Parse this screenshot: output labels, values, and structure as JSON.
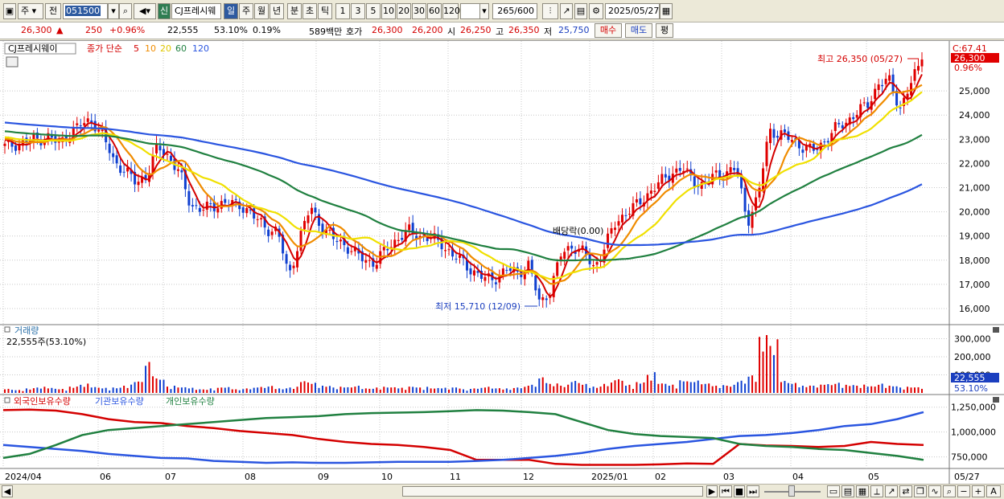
{
  "toolbar": {
    "period_label": "주",
    "prev_label": "전",
    "stock_code": "051500",
    "new_label": "신",
    "stock_name": "CJ프레시웨",
    "tabs": [
      "일",
      "주",
      "월",
      "년",
      "분",
      "초",
      "틱"
    ],
    "active_tab": "일",
    "intervals": [
      "1",
      "3",
      "5",
      "10",
      "20",
      "30",
      "60",
      "120"
    ],
    "count": "265",
    "count_total": "/600",
    "date": "2025/05/27"
  },
  "info": {
    "price": "26,300",
    "change": "250",
    "change_pct": "+0.96%",
    "volume": "22,555",
    "vol_ratio": "53.10%",
    "turnover": "0.19%",
    "amount": "589백만",
    "bid_label": "호가",
    "ask_price": "26,300",
    "bid_price": "26,200",
    "open_label": "시",
    "open": "26,250",
    "high_label": "고",
    "high": "26,350",
    "low_label": "저",
    "low": "25,750",
    "buy_label": "매수",
    "sell_label": "매도",
    "eval_label": "평"
  },
  "price_panel": {
    "legend_name": "CJ프레시웨이",
    "legend_ma_title": "종가 단순",
    "ma_periods": [
      "5",
      "10",
      "20",
      "60",
      "120"
    ],
    "ma_colors": [
      "#d40000",
      "#f08c00",
      "#f0e000",
      "#208040",
      "#2a55e0"
    ],
    "max_label": "최고 26,350 (05/27)",
    "min_label": "최저 15,710 (12/09)",
    "ex_div_label": "배당락(0.00)",
    "current_price_tag": "26,300",
    "change_tag": "0.96%",
    "c_label": "C:67.41",
    "y_ticks": [
      "25,000",
      "24,000",
      "23,000",
      "22,000",
      "21,000",
      "20,000",
      "19,000",
      "18,000",
      "17,000",
      "16,000"
    ]
  },
  "volume_panel": {
    "title": "거래량",
    "value_label": "22,555주(53.10%)",
    "y_ticks": [
      "300,000",
      "200,000",
      "100,000"
    ],
    "current_tag": "22,555",
    "pct_tag": "53.10%"
  },
  "holding_panel": {
    "legend": [
      "외국인보유수량",
      "기관보유수량",
      "개인보유수량"
    ],
    "colors": [
      "#d40000",
      "#2a55e0",
      "#208040"
    ],
    "y_ticks": [
      "1,250,000",
      "1,000,000",
      "750,000"
    ]
  },
  "x_axis": {
    "ticks": [
      "2024/04",
      "06",
      "07",
      "08",
      "09",
      "10",
      "11",
      "12",
      "2025/01",
      "02",
      "03",
      "04",
      "05"
    ],
    "right_label": "05/27"
  },
  "chart_data": {
    "type": "candlestick",
    "title": "CJ프레시웨이",
    "x_range": [
      "2024/04",
      "05/27"
    ],
    "ylim_price": [
      15500,
      26800
    ],
    "ylim_volume": [
      0,
      320000
    ],
    "ylim_holding": [
      650000,
      1280000
    ],
    "close_series": [
      22700,
      22800,
      22900,
      23000,
      23100,
      22800,
      23300,
      23600,
      23800,
      23100,
      22100,
      21700,
      21200,
      21500,
      22700,
      22300,
      21600,
      20300,
      20100,
      20200,
      20400,
      20300,
      20200,
      19700,
      19300,
      19200,
      17300,
      18900,
      20200,
      19400,
      18900,
      18700,
      18300,
      18000,
      17900,
      18500,
      18900,
      19200,
      19000,
      18900,
      18700,
      18200,
      17900,
      17500,
      17200,
      17300,
      17600,
      17500,
      17800,
      16200,
      16800,
      18300,
      18600,
      18300,
      17700,
      18600,
      19600,
      20000,
      20300,
      20800,
      21200,
      21600,
      21800,
      21300,
      21100,
      21500,
      21600,
      21800,
      19600,
      20600,
      23400,
      23200,
      23000,
      22700,
      22500,
      22900,
      23400,
      23700,
      24100,
      24400,
      25300,
      25400,
      24300,
      25300,
      26300
    ],
    "volume_series": [
      20000,
      15000,
      25000,
      30000,
      25000,
      20000,
      35000,
      45000,
      30000,
      25000,
      30000,
      40000,
      60000,
      150000,
      80000,
      35000,
      30000,
      25000,
      20000,
      25000,
      30000,
      20000,
      25000,
      30000,
      35000,
      25000,
      30000,
      60000,
      50000,
      40000,
      30000,
      30000,
      35000,
      25000,
      30000,
      30000,
      25000,
      35000,
      30000,
      25000,
      25000,
      30000,
      20000,
      25000,
      30000,
      25000,
      25000,
      30000,
      40000,
      80000,
      50000,
      40000,
      60000,
      45000,
      35000,
      50000,
      70000,
      40000,
      60000,
      100000,
      50000,
      40000,
      70000,
      60000,
      50000,
      40000,
      40000,
      60000,
      90000,
      310000,
      260000,
      60000,
      50000,
      40000,
      40000,
      45000,
      50000,
      45000,
      40000,
      35000,
      45000,
      40000,
      30000,
      30000,
      22555
    ],
    "holding_series": [
      {
        "name": "외국인보유수량",
        "values": [
          1220000,
          1225000,
          1215000,
          1180000,
          1130000,
          1100000,
          1090000,
          1060000,
          1040000,
          1010000,
          990000,
          970000,
          930000,
          900000,
          880000,
          870000,
          850000,
          820000,
          720000,
          720000,
          720000,
          680000,
          670000,
          670000,
          670000,
          675000,
          685000,
          680000,
          880000,
          865000,
          860000,
          850000,
          860000,
          900000,
          880000,
          870000
        ]
      },
      {
        "name": "기관보유수량",
        "values": [
          870000,
          850000,
          830000,
          810000,
          780000,
          760000,
          740000,
          735000,
          710000,
          700000,
          690000,
          695000,
          690000,
          690000,
          695000,
          700000,
          700000,
          700000,
          710000,
          720000,
          740000,
          760000,
          790000,
          830000,
          860000,
          880000,
          900000,
          930000,
          960000,
          970000,
          990000,
          1020000,
          1060000,
          1080000,
          1130000,
          1200000
        ]
      },
      {
        "name": "개인보유수량",
        "values": [
          740000,
          780000,
          870000,
          970000,
          1020000,
          1040000,
          1060000,
          1080000,
          1100000,
          1120000,
          1140000,
          1150000,
          1160000,
          1180000,
          1190000,
          1195000,
          1200000,
          1210000,
          1220000,
          1215000,
          1200000,
          1180000,
          1100000,
          1020000,
          980000,
          960000,
          950000,
          940000,
          880000,
          860000,
          850000,
          830000,
          820000,
          790000,
          760000,
          720000
        ]
      }
    ]
  }
}
